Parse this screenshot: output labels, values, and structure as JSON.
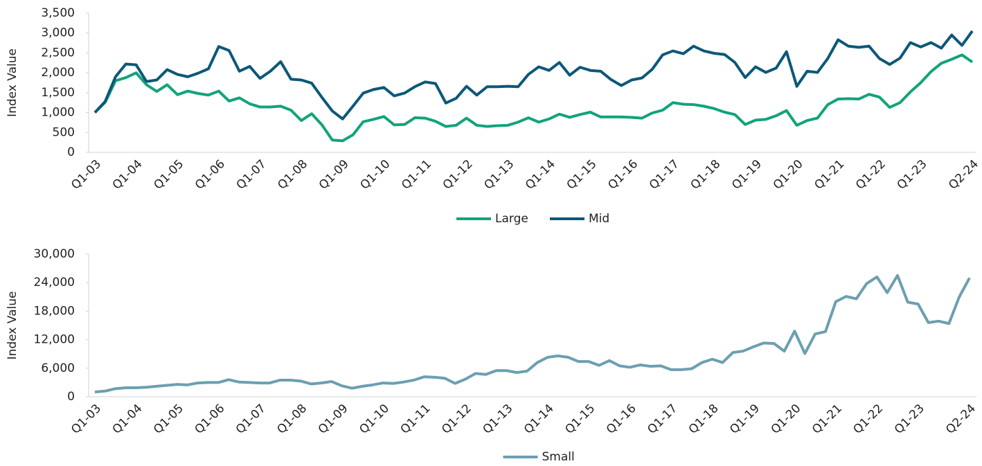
{
  "chart_data": [
    {
      "type": "line",
      "y_label": "Index Value",
      "legend": "bottom",
      "categories": [
        "Q1-03",
        null,
        null,
        null,
        "Q1-04",
        null,
        null,
        null,
        "Q1-05",
        null,
        null,
        null,
        "Q1-06",
        null,
        null,
        null,
        "Q1-07",
        null,
        null,
        null,
        "Q1-08",
        null,
        null,
        null,
        "Q1-09",
        null,
        null,
        null,
        "Q1-10",
        null,
        null,
        null,
        "Q1-11",
        null,
        null,
        null,
        "Q1-12",
        null,
        null,
        null,
        "Q1-13",
        null,
        null,
        null,
        "Q1-14",
        null,
        null,
        null,
        "Q1-15",
        null,
        null,
        null,
        "Q1-16",
        null,
        null,
        null,
        "Q1-17",
        null,
        null,
        null,
        "Q1-18",
        null,
        null,
        null,
        "Q1-19",
        null,
        null,
        null,
        "Q1-20",
        null,
        null,
        null,
        "Q1-21",
        null,
        null,
        null,
        "Q1-22",
        null,
        null,
        null,
        "Q1-23",
        null,
        null,
        null,
        null,
        "Q2-24"
      ],
      "series": [
        {
          "name": "Large",
          "color": "#12a37c",
          "values": [
            1000,
            1260,
            1800,
            1880,
            2000,
            1700,
            1530,
            1700,
            1450,
            1540,
            1480,
            1440,
            1540,
            1290,
            1370,
            1220,
            1140,
            1140,
            1160,
            1060,
            800,
            970,
            690,
            310,
            290,
            440,
            770,
            830,
            900,
            690,
            700,
            870,
            860,
            780,
            650,
            680,
            860,
            680,
            650,
            670,
            680,
            760,
            870,
            760,
            840,
            960,
            880,
            950,
            1010,
            890,
            890,
            890,
            880,
            860,
            990,
            1060,
            1250,
            1210,
            1200,
            1160,
            1100,
            1010,
            950,
            700,
            810,
            830,
            920,
            1050,
            680,
            800,
            860,
            1200,
            1340,
            1350,
            1340,
            1460,
            1390,
            1130,
            1250,
            1520,
            1750,
            2030,
            2240,
            2340,
            2450,
            2270
          ]
        },
        {
          "name": "Mid",
          "color": "#0c5878",
          "values": [
            1000,
            1280,
            1900,
            2220,
            2200,
            1780,
            1820,
            2080,
            1960,
            1900,
            1990,
            2100,
            2660,
            2560,
            2040,
            2160,
            1860,
            2040,
            2280,
            1840,
            1820,
            1740,
            1380,
            1040,
            840,
            1160,
            1490,
            1580,
            1630,
            1420,
            1490,
            1650,
            1770,
            1730,
            1240,
            1360,
            1660,
            1440,
            1650,
            1650,
            1660,
            1650,
            1960,
            2150,
            2060,
            2260,
            1940,
            2140,
            2060,
            2040,
            1830,
            1680,
            1820,
            1870,
            2090,
            2450,
            2550,
            2480,
            2670,
            2550,
            2490,
            2460,
            2260,
            1880,
            2150,
            2010,
            2120,
            2530,
            1660,
            2040,
            2010,
            2360,
            2830,
            2670,
            2640,
            2670,
            2360,
            2210,
            2370,
            2760,
            2650,
            2760,
            2620,
            2950,
            2690,
            3050
          ]
        }
      ],
      "ylim": [
        0,
        3500
      ],
      "yticks": [
        0,
        500,
        {
          "value": 1000,
          "label": "1,000"
        },
        {
          "value": 1500,
          "label": "1,500"
        },
        {
          "value": 2000,
          "label": "2,000"
        },
        {
          "value": 2500,
          "label": "2,500"
        },
        {
          "value": 3000,
          "label": "3,000"
        },
        {
          "value": 3500,
          "label": "3,500"
        }
      ]
    },
    {
      "type": "line",
      "y_label": "Index Value",
      "legend": "bottom",
      "categories": [
        "Q1-03",
        null,
        null,
        null,
        "Q1-04",
        null,
        null,
        null,
        "Q1-05",
        null,
        null,
        null,
        "Q1-06",
        null,
        null,
        null,
        "Q1-07",
        null,
        null,
        null,
        "Q1-08",
        null,
        null,
        null,
        "Q1-09",
        null,
        null,
        null,
        "Q1-10",
        null,
        null,
        null,
        "Q1-11",
        null,
        null,
        null,
        "Q1-12",
        null,
        null,
        null,
        "Q1-13",
        null,
        null,
        null,
        "Q1-14",
        null,
        null,
        null,
        "Q1-15",
        null,
        null,
        null,
        "Q1-16",
        null,
        null,
        null,
        "Q1-17",
        null,
        null,
        null,
        "Q1-18",
        null,
        null,
        null,
        "Q1-19",
        null,
        null,
        null,
        "Q1-20",
        null,
        null,
        null,
        "Q1-21",
        null,
        null,
        null,
        "Q1-22",
        null,
        null,
        null,
        "Q1-23",
        null,
        null,
        null,
        null,
        "Q2-24"
      ],
      "series": [
        {
          "name": "Small",
          "color": "#6c9fb1",
          "values": [
            1000,
            1200,
            1700,
            1900,
            1900,
            2000,
            2200,
            2400,
            2600,
            2500,
            2900,
            3000,
            3000,
            3600,
            3100,
            3000,
            2900,
            2900,
            3500,
            3500,
            3300,
            2700,
            2900,
            3200,
            2300,
            1800,
            2200,
            2500,
            2900,
            2800,
            3100,
            3500,
            4200,
            4100,
            3900,
            2800,
            3700,
            4900,
            4700,
            5500,
            5500,
            5100,
            5400,
            7200,
            8300,
            8600,
            8300,
            7400,
            7400,
            6600,
            7600,
            6500,
            6200,
            6700,
            6400,
            6500,
            5700,
            5700,
            5900,
            7200,
            7900,
            7200,
            9300,
            9600,
            10500,
            11300,
            11200,
            9600,
            13800,
            9100,
            13200,
            13700,
            20000,
            21100,
            20600,
            23800,
            25200,
            21900,
            25500,
            19900,
            19500,
            15600,
            15900,
            15400,
            21000,
            25000
          ]
        }
      ],
      "ylim": [
        0,
        30000
      ],
      "yticks": [
        0,
        {
          "value": 6000,
          "label": "6,000"
        },
        {
          "value": 12000,
          "label": "12,000"
        },
        {
          "value": 18000,
          "label": "18,000"
        },
        {
          "value": 24000,
          "label": "24,000"
        },
        {
          "value": 30000,
          "label": "30,000"
        }
      ]
    }
  ]
}
